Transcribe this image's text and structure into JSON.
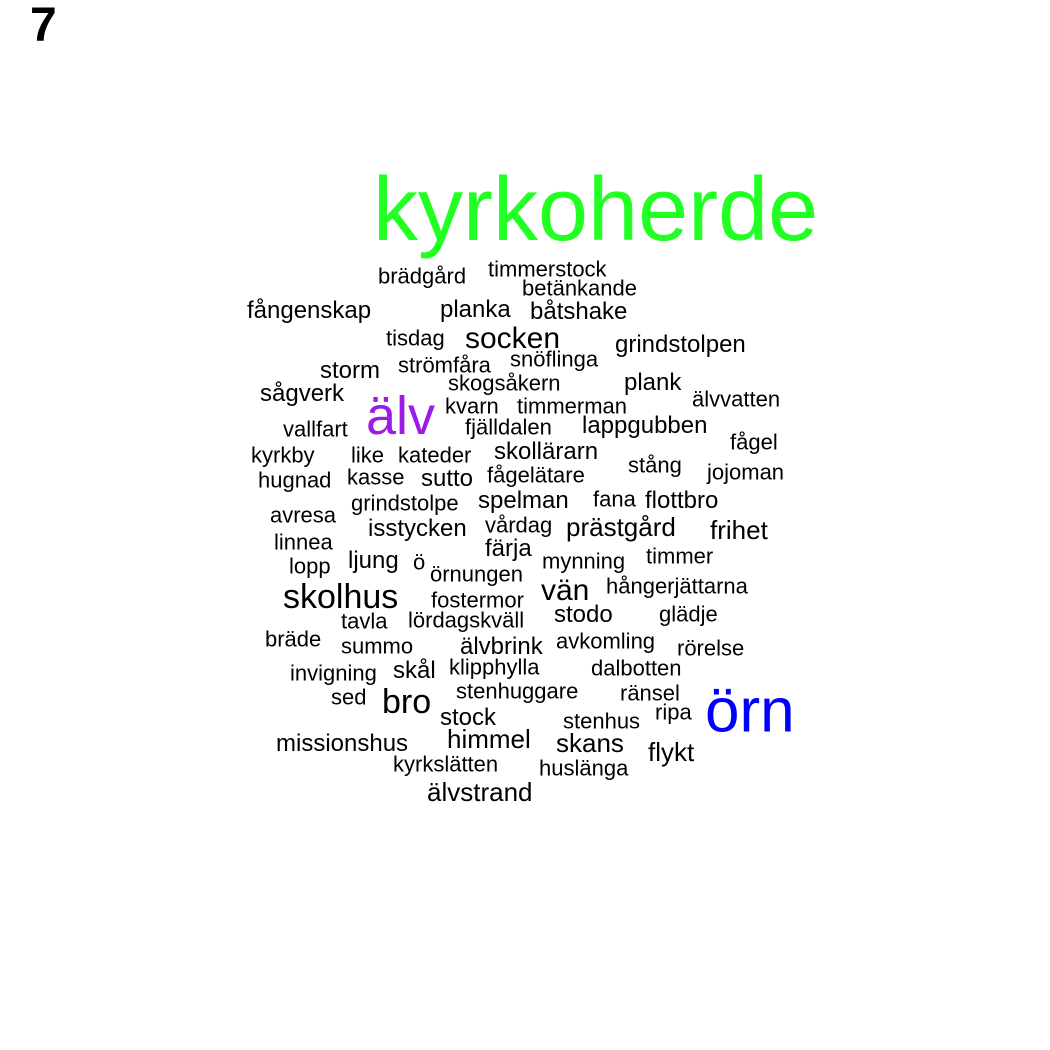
{
  "panel_number": "7",
  "colors": {
    "default": "#000000",
    "kyrkoherde": "#22ff22",
    "alv": "#9a1ce6",
    "orn": "#0000ff"
  },
  "words": [
    "kyrkoherde",
    "älv",
    "örn",
    "brädgård",
    "timmerstock",
    "betänkande",
    "fångenskap",
    "planka",
    "båtshake",
    "tisdag",
    "socken",
    "grindstolpen",
    "storm",
    "strömfåra",
    "snöflinga",
    "skogsåkern",
    "plank",
    "sågverk",
    "älvvatten",
    "kvarn",
    "timmerman",
    "vallfart",
    "fjälldalen",
    "lappgubben",
    "fågel",
    "kyrkby",
    "like",
    "kateder",
    "skollärarn",
    "stång",
    "jojoman",
    "hugnad",
    "kasse",
    "sutto",
    "fågelätare",
    "grindstolpe",
    "spelman",
    "fana",
    "flottbro",
    "avresa",
    "isstycken",
    "vårdag",
    "prästgård",
    "frihet",
    "linnea",
    "färja",
    "lopp",
    "ljung",
    "ö",
    "örnungen",
    "mynning",
    "timmer",
    "skolhus",
    "vän",
    "hångerjättarna",
    "fostermor",
    "tavla",
    "lördagskväll",
    "stodo",
    "glädje",
    "bräde",
    "summo",
    "älvbrink",
    "avkomling",
    "rörelse",
    "invigning",
    "skål",
    "klipphylla",
    "dalbotten",
    "sed",
    "stenhuggare",
    "ränsel",
    "bro",
    "stock",
    "stenhus",
    "ripa",
    "missionshus",
    "himmel",
    "skans",
    "flykt",
    "kyrkslätten",
    "huslänga",
    "älvstrand"
  ]
}
